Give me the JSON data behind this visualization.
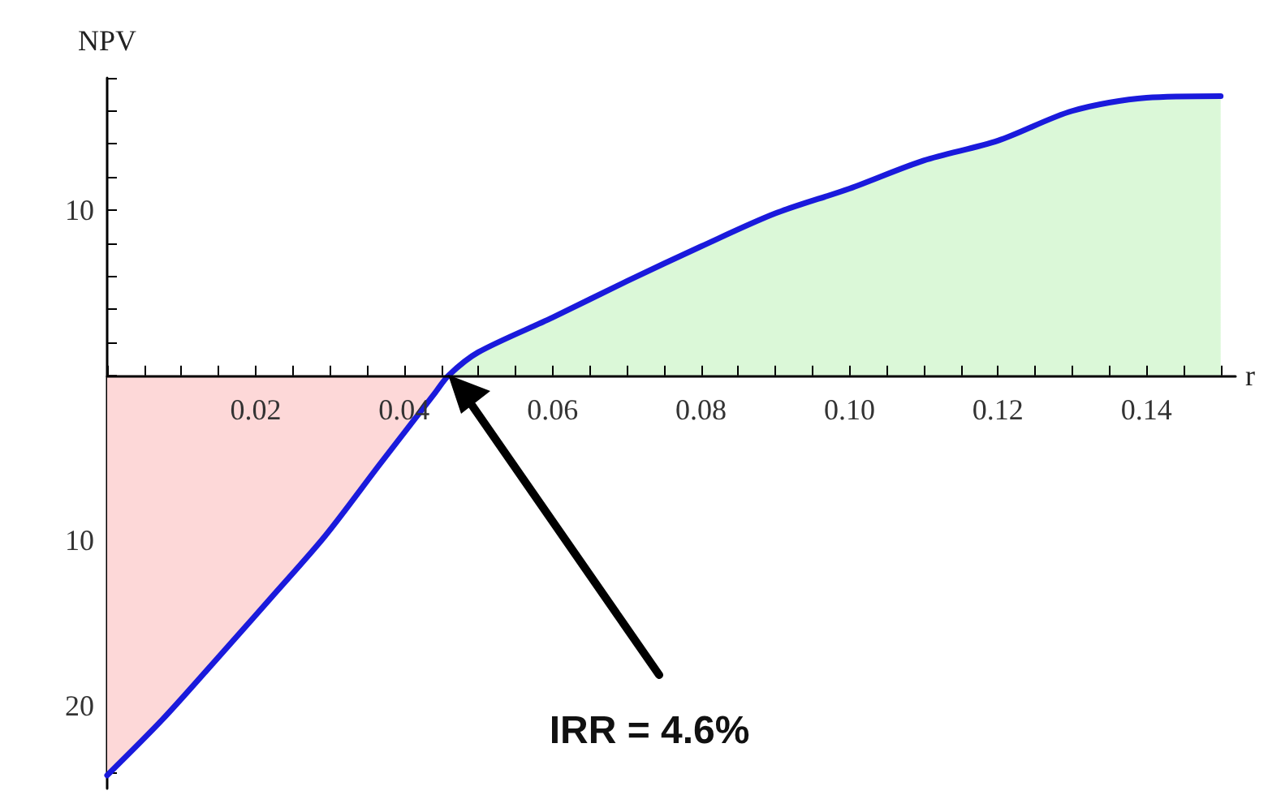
{
  "chart_data": {
    "type": "area",
    "xlabel": "r",
    "ylabel": "NPV",
    "x": [
      0,
      0.0075,
      0.0147,
      0.0222,
      0.0294,
      0.0367,
      0.0441,
      0.046,
      0.05,
      0.06,
      0.07,
      0.08,
      0.09,
      0.1,
      0.11,
      0.12,
      0.13,
      0.14,
      0.15
    ],
    "series": [
      {
        "color": "#1a1adc",
        "values": [
          -24.2,
          -20.8,
          -17.2,
          -13.4,
          -9.7,
          -5.4,
          -1.1,
          0,
          1.4,
          3.5,
          5.7,
          7.8,
          9.8,
          11.3,
          13.0,
          14.2,
          16.0,
          16.8,
          16.9
        ]
      }
    ],
    "xlim": [
      0,
      0.152
    ],
    "xticks": [
      0.02,
      0.04,
      0.06,
      0.08,
      {
        "value": 0.1,
        "label": "0.10"
      },
      0.12,
      0.14
    ],
    "ylim": [
      -25,
      18
    ],
    "yticks": [
      {
        "value": -20,
        "label": "20"
      },
      {
        "value": -10,
        "label": "10"
      },
      {
        "value": 10,
        "label": "10"
      }
    ],
    "grid": false,
    "marker": "none",
    "line_style": "solid",
    "annotations": [
      "IRR = 4.6%"
    ]
  }
}
